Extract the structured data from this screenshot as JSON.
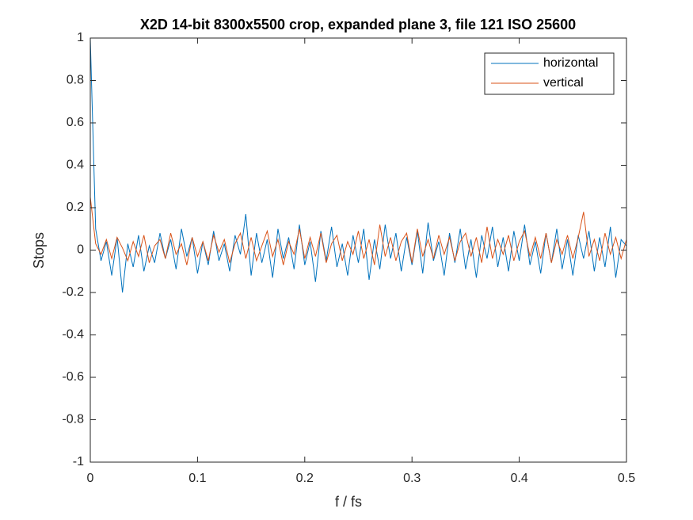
{
  "chart_data": {
    "type": "line",
    "title": "X2D 14-bit 8300x5500 crop, expanded plane 3, file 121 ISO 25600",
    "xlabel": "f / fs",
    "ylabel": "Stops",
    "x": [
      0,
      0.005,
      0.01,
      0.015,
      0.02,
      0.025,
      0.03,
      0.035,
      0.04,
      0.045,
      0.05,
      0.055,
      0.06,
      0.065,
      0.07,
      0.075,
      0.08,
      0.085,
      0.09,
      0.095,
      0.1,
      0.105,
      0.11,
      0.115,
      0.12,
      0.125,
      0.13,
      0.135,
      0.14,
      0.145,
      0.15,
      0.155,
      0.16,
      0.165,
      0.17,
      0.175,
      0.18,
      0.185,
      0.19,
      0.195,
      0.2,
      0.205,
      0.21,
      0.215,
      0.22,
      0.225,
      0.23,
      0.235,
      0.24,
      0.245,
      0.25,
      0.255,
      0.26,
      0.265,
      0.27,
      0.275,
      0.28,
      0.285,
      0.29,
      0.295,
      0.3,
      0.305,
      0.31,
      0.315,
      0.32,
      0.325,
      0.33,
      0.335,
      0.34,
      0.345,
      0.35,
      0.355,
      0.36,
      0.365,
      0.37,
      0.375,
      0.38,
      0.385,
      0.39,
      0.395,
      0.4,
      0.405,
      0.41,
      0.415,
      0.42,
      0.425,
      0.43,
      0.435,
      0.44,
      0.445,
      0.45,
      0.455,
      0.46,
      0.465,
      0.47,
      0.475,
      0.48,
      0.485,
      0.49,
      0.495,
      0.5
    ],
    "series": [
      {
        "name": "horizontal",
        "color": "#0072bd",
        "values": [
          1,
          0.1,
          -0.05,
          0.04,
          -0.12,
          0.06,
          -0.2,
          0.03,
          -0.08,
          0.07,
          -0.1,
          0.02,
          -0.06,
          0.08,
          -0.04,
          0.05,
          -0.09,
          0.1,
          -0.03,
          0.06,
          -0.11,
          0.04,
          -0.07,
          0.09,
          -0.05,
          0.03,
          -0.1,
          0.07,
          -0.02,
          0.17,
          -0.12,
          0.08,
          -0.06,
          0.05,
          -0.13,
          0.1,
          -0.04,
          0.06,
          -0.09,
          0.12,
          -0.07,
          0.04,
          -0.15,
          0.09,
          -0.05,
          0.11,
          -0.08,
          0.03,
          -0.12,
          0.07,
          -0.06,
          0.1,
          -0.14,
          0.05,
          -0.09,
          0.12,
          -0.04,
          0.08,
          -0.1,
          0.06,
          -0.07,
          0.09,
          -0.11,
          0.13,
          -0.05,
          0.04,
          -0.12,
          0.08,
          -0.06,
          0.1,
          -0.09,
          0.05,
          -0.13,
          0.07,
          -0.04,
          0.11,
          -0.08,
          0.06,
          -0.1,
          0.09,
          -0.05,
          0.12,
          -0.07,
          0.04,
          -0.11,
          0.08,
          -0.06,
          0.1,
          -0.09,
          0.05,
          -0.12,
          0.07,
          -0.04,
          0.09,
          -0.1,
          0.06,
          -0.08,
          0.11,
          -0.13,
          0.05,
          0.02
        ]
      },
      {
        "name": "vertical",
        "color": "#d95319",
        "values": [
          0.25,
          0.03,
          -0.02,
          0.05,
          -0.04,
          0.06,
          0.01,
          -0.05,
          0.04,
          -0.03,
          0.07,
          -0.06,
          0.02,
          0.05,
          -0.04,
          0.08,
          -0.02,
          0.03,
          -0.07,
          0.06,
          -0.03,
          0.04,
          -0.05,
          0.07,
          -0.01,
          0.05,
          -0.06,
          0.03,
          0.08,
          -0.04,
          0.06,
          -0.05,
          0.02,
          0.09,
          -0.03,
          0.05,
          -0.07,
          0.04,
          -0.02,
          0.1,
          -0.04,
          0.06,
          -0.03,
          0.08,
          -0.06,
          0.03,
          0.07,
          -0.05,
          0.04,
          -0.02,
          0.09,
          -0.04,
          0.05,
          -0.07,
          0.12,
          -0.03,
          0.06,
          -0.05,
          0.04,
          0.08,
          -0.06,
          0.1,
          -0.03,
          0.05,
          -0.04,
          0.07,
          -0.02,
          0.06,
          -0.05,
          0.04,
          0.08,
          -0.03,
          0.06,
          -0.06,
          0.11,
          -0.04,
          0.05,
          -0.02,
          0.07,
          -0.05,
          0.04,
          0.09,
          -0.03,
          0.06,
          -0.04,
          0.08,
          -0.06,
          0.05,
          -0.02,
          0.07,
          -0.04,
          0.06,
          0.18,
          -0.03,
          0.05,
          -0.05,
          0.08,
          -0.02,
          0.06,
          -0.04,
          0.05
        ]
      }
    ],
    "xlim": [
      0,
      0.5
    ],
    "xticks": [
      0,
      0.1,
      0.2,
      0.3,
      0.4,
      0.5
    ],
    "ylim": [
      -1,
      1
    ],
    "yticks": [
      -1,
      -0.8,
      -0.6,
      -0.4,
      -0.2,
      0,
      0.2,
      0.4,
      0.6,
      0.8,
      1
    ],
    "legend": "upper right"
  }
}
